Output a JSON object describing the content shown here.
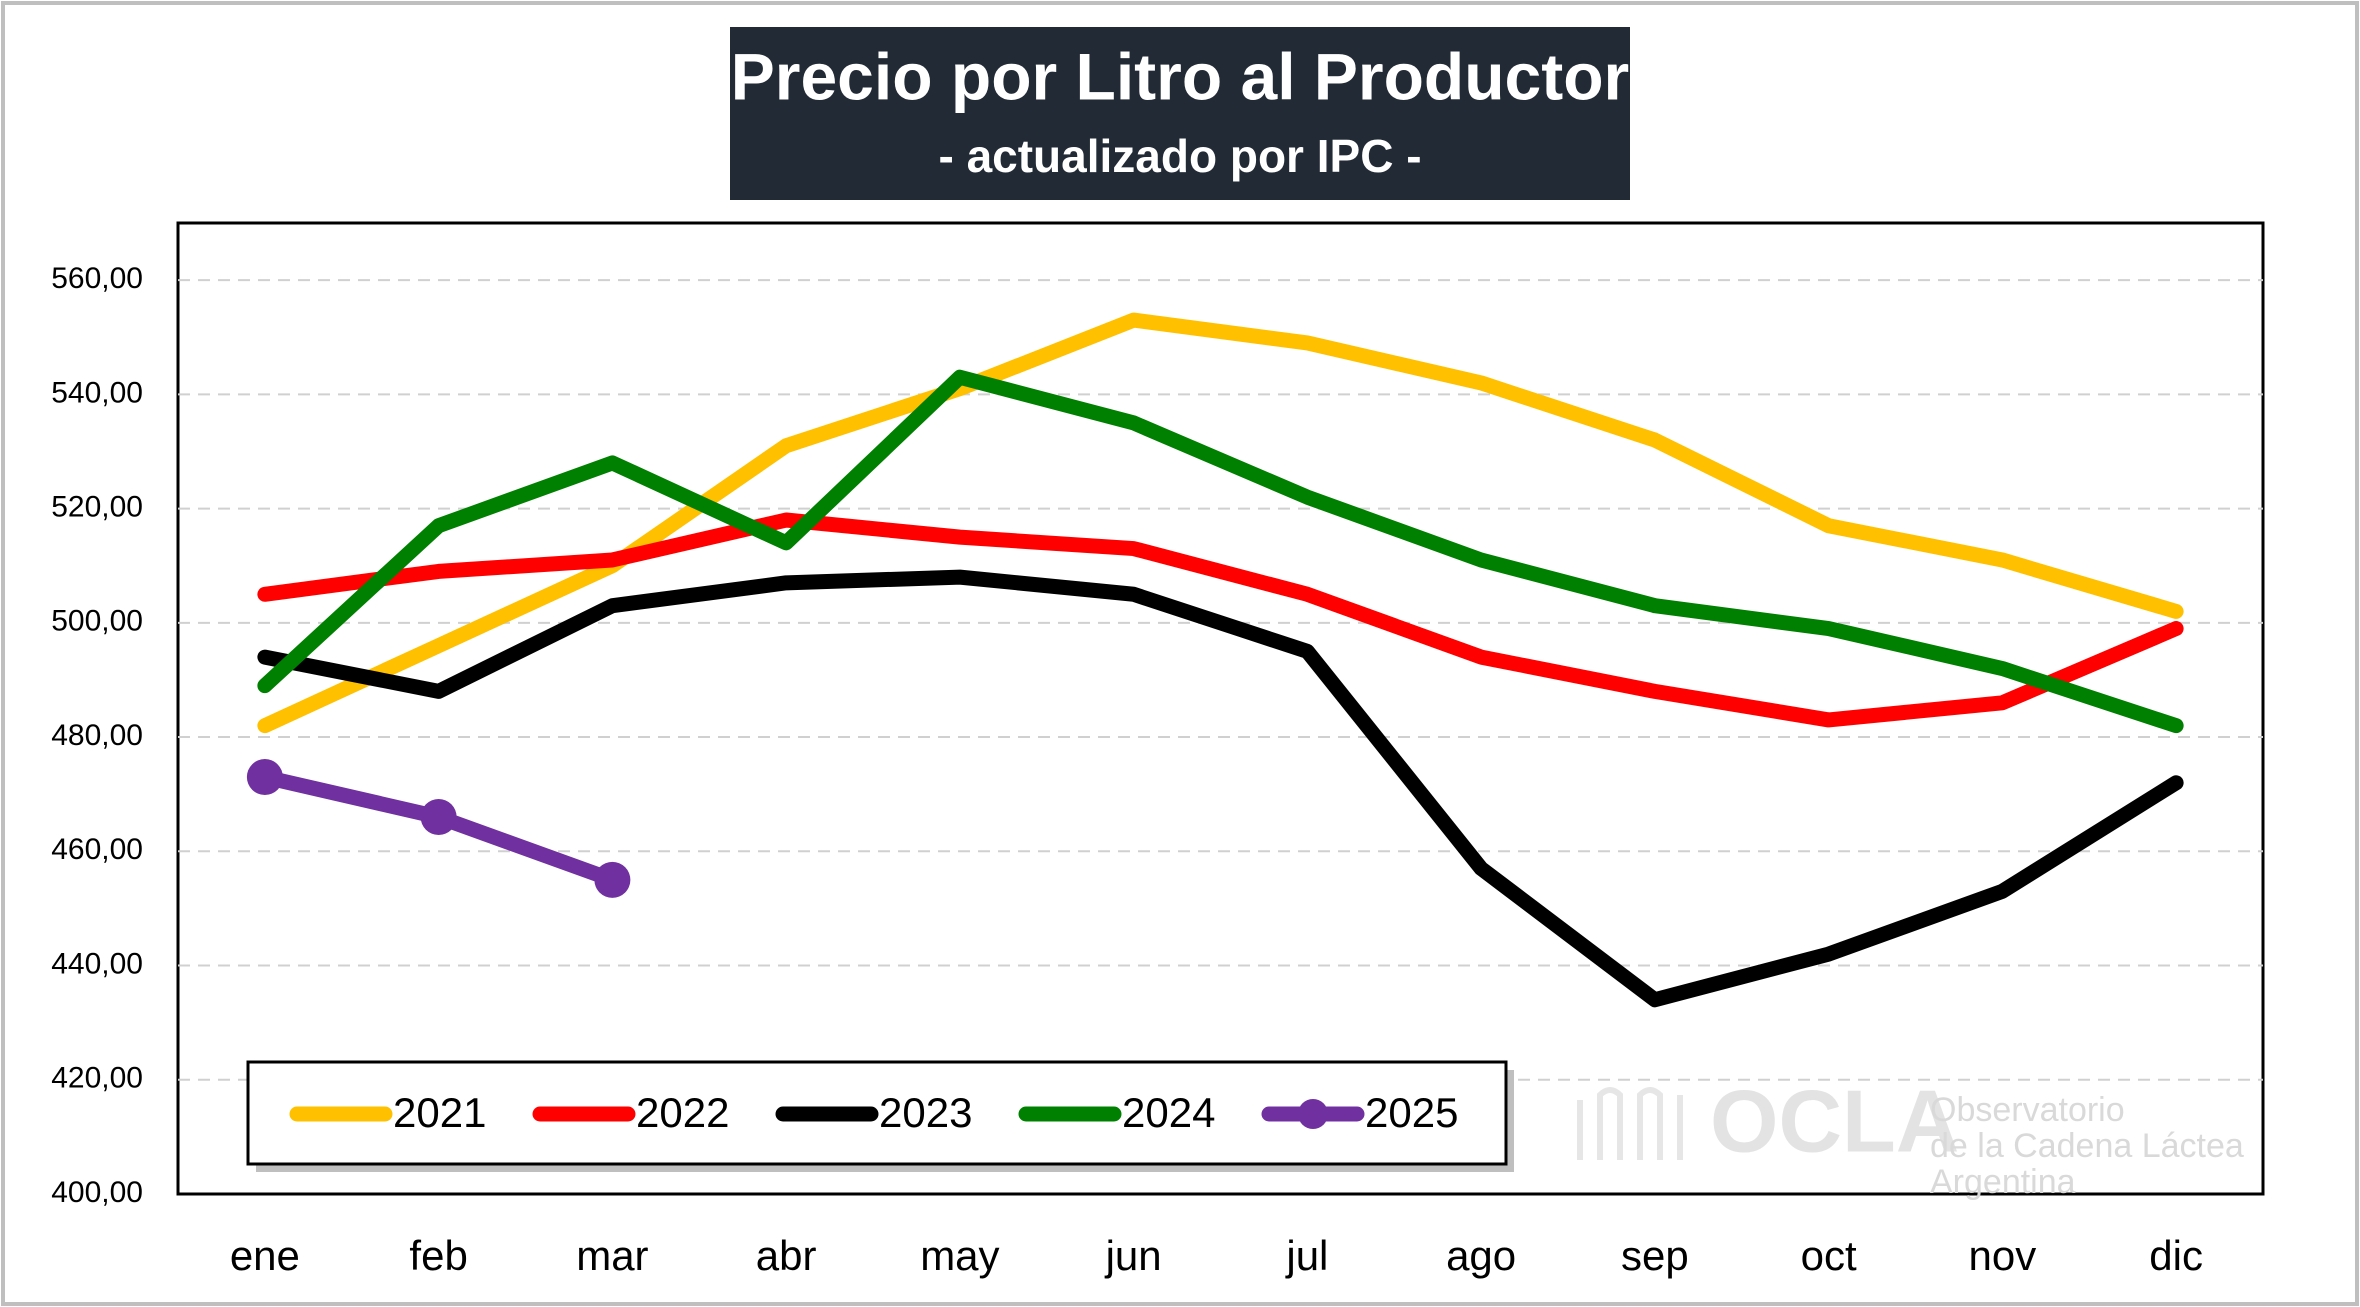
{
  "chart_data": {
    "type": "line",
    "title": "Precio por Litro al Productor",
    "subtitle": "- actualizado por IPC -",
    "categories": [
      "ene",
      "feb",
      "mar",
      "abr",
      "may",
      "jun",
      "jul",
      "ago",
      "sep",
      "oct",
      "nov",
      "dic"
    ],
    "series": [
      {
        "name": "2021",
        "color": "#ffc000",
        "values": [
          482,
          496,
          510,
          531,
          541,
          553,
          549,
          542,
          532,
          517,
          511,
          502
        ]
      },
      {
        "name": "2022",
        "color": "#ff0000",
        "values": [
          505,
          509,
          511,
          518,
          515,
          513,
          505,
          494,
          488,
          483,
          486,
          499
        ]
      },
      {
        "name": "2023",
        "color": "#000000",
        "values": [
          494,
          488,
          503,
          507,
          508,
          505,
          495,
          457,
          434,
          442,
          453,
          472
        ]
      },
      {
        "name": "2024",
        "color": "#008000",
        "values": [
          489,
          517,
          528,
          514,
          543,
          535,
          522,
          511,
          503,
          499,
          492,
          482
        ]
      },
      {
        "name": "2025",
        "color": "#7030a0",
        "markers": true,
        "values": [
          473,
          466,
          455,
          null,
          null,
          null,
          null,
          null,
          null,
          null,
          null,
          null
        ]
      }
    ],
    "ylim": [
      400,
      570
    ],
    "yticks": [
      {
        "value": 400,
        "label": "400,00"
      },
      {
        "value": 420,
        "label": "420,00"
      },
      {
        "value": 440,
        "label": "440,00"
      },
      {
        "value": 460,
        "label": "460,00"
      },
      {
        "value": 480,
        "label": "480,00"
      },
      {
        "value": 500,
        "label": "500,00"
      },
      {
        "value": 520,
        "label": "520,00"
      },
      {
        "value": 540,
        "label": "540,00"
      },
      {
        "value": 560,
        "label": "560,00"
      }
    ],
    "grid": true,
    "legend": "bottom-left",
    "watermark": {
      "logo": "OCLA",
      "lines": [
        "Observatorio",
        "de la Cadena Láctea",
        "Argentina"
      ]
    }
  }
}
